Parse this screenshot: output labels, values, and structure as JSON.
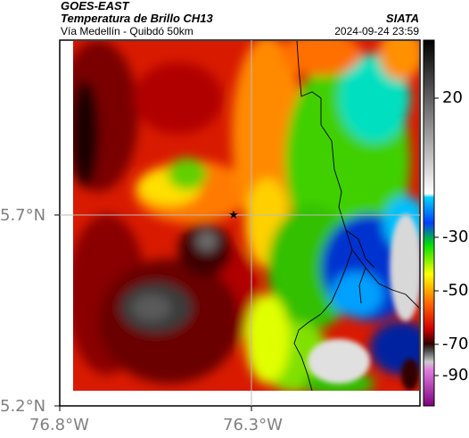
{
  "header": {
    "satellite": "GOES-EAST",
    "product": "Temperatura de Brillo CH13",
    "route": "Vía Medellín - Quibdó 50km",
    "agency": "SIATA",
    "datetime": "2024-09-24 23:59"
  },
  "axes": {
    "lat_ticks": [
      "5.7°N",
      "5.2°N"
    ],
    "lon_ticks": [
      "76.8°W",
      "76.3°W"
    ]
  },
  "colorbar": {
    "ticks": [
      "20",
      "-30",
      "-50",
      "-70",
      "-90"
    ]
  },
  "marker": {
    "name": "star-marker"
  }
}
